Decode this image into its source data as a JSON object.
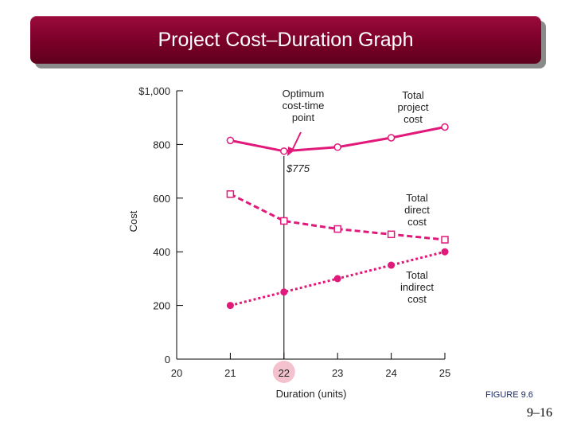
{
  "slide": {
    "title": "Project Cost–Duration Graph",
    "figure_label": "FIGURE 9.6",
    "page_number": "9–16",
    "accent_color": "#7a0028"
  },
  "chart_data": {
    "type": "line",
    "x": [
      21,
      22,
      23,
      24,
      25
    ],
    "xlim": [
      20,
      25
    ],
    "ylim": [
      0,
      1000
    ],
    "x_ticks": [
      "20",
      "21",
      "22",
      "23",
      "24",
      "25"
    ],
    "y_ticks": [
      "0",
      "200",
      "400",
      "600",
      "800",
      "$1,000"
    ],
    "xlabel": "Duration (units)",
    "ylabel": "Cost",
    "series_color": "#e0197a",
    "series": [
      {
        "name": "Total project cost",
        "label_lines": [
          "Total",
          "project",
          "cost"
        ],
        "marker": "open-circle",
        "style": "solid",
        "values": [
          815,
          775,
          790,
          825,
          865
        ]
      },
      {
        "name": "Total direct cost",
        "label_lines": [
          "Total",
          "direct",
          "cost"
        ],
        "marker": "open-square",
        "style": "dashed",
        "values": [
          615,
          515,
          485,
          465,
          445
        ]
      },
      {
        "name": "Total indirect cost",
        "label_lines": [
          "Total",
          "indirect",
          "cost"
        ],
        "marker": "filled-circle",
        "style": "dotted",
        "values": [
          200,
          250,
          300,
          350,
          400
        ]
      }
    ],
    "annotations": {
      "optimum_label_lines": [
        "Optimum",
        "cost-time",
        "point"
      ],
      "optimum_x": 22,
      "optimum_value": "$775",
      "highlight_tick": "22"
    }
  }
}
